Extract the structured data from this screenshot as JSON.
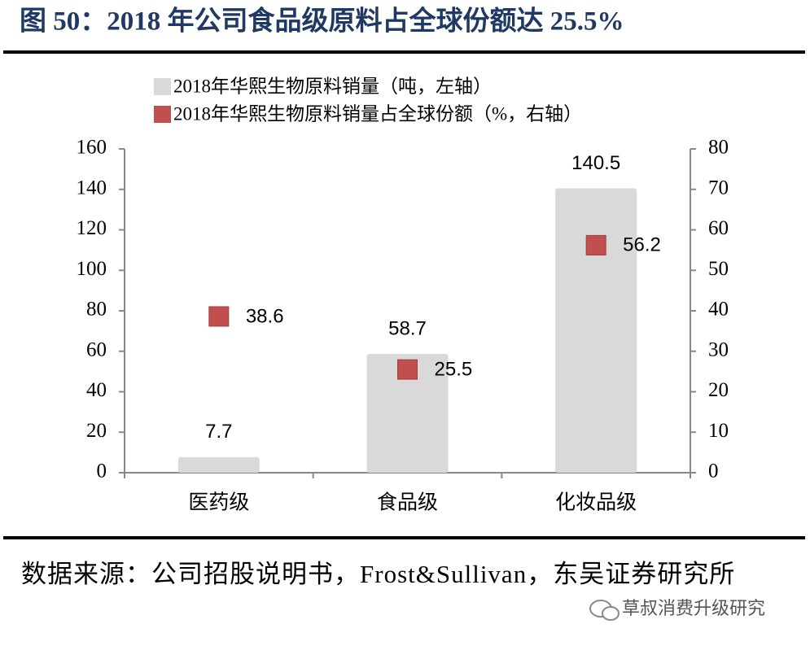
{
  "chart_data": {
    "type": "bar",
    "title": "图 50：2018 年公司食品级原料占全球份额达 25.5%",
    "categories": [
      "医药级",
      "食品级",
      "化妆品级"
    ],
    "series": [
      {
        "name": "2018年华熙生物原料销量（吨，左轴）",
        "type": "bar",
        "color": "#d9d9d9",
        "values": [
          7.7,
          58.7,
          140.5
        ]
      },
      {
        "name": "2018年华熙生物原料销量占全球份额（%，右轴）",
        "type": "scatter",
        "axis": "y2",
        "color": "#c0504d",
        "values": [
          38.6,
          25.5,
          56.2
        ]
      }
    ],
    "ylim": [
      0,
      160
    ],
    "yticks": [
      0,
      20,
      40,
      60,
      80,
      100,
      120,
      140,
      160
    ],
    "y2lim": [
      0,
      80
    ],
    "y2ticks": [
      0,
      10,
      20,
      30,
      40,
      50,
      60,
      70,
      80
    ],
    "legend": "top-left",
    "source": "数据来源：公司招股说明书，Frost&Sullivan，东吴证券研究所",
    "watermark": "草叔消费升级研究"
  }
}
